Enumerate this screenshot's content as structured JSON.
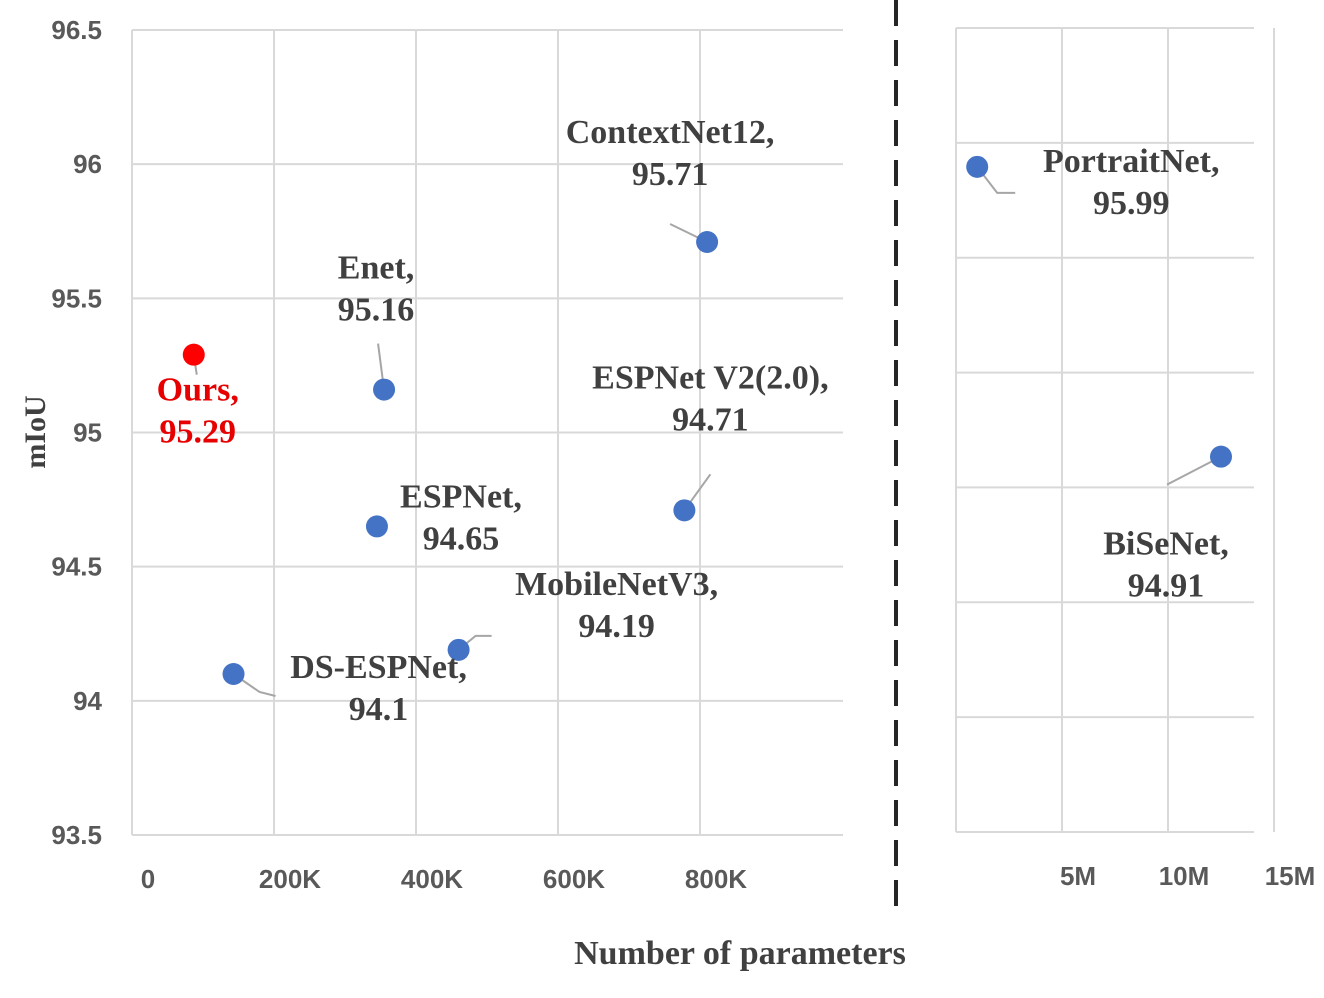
{
  "chart_data": [
    {
      "type": "scatter",
      "title": "",
      "xlabel": "Number of parameters",
      "ylabel": "mIoU",
      "xlim": [
        0,
        1000000
      ],
      "ylim": [
        93.5,
        96.5
      ],
      "grid": true,
      "x_ticks": [
        {
          "value": 0,
          "label": "0"
        },
        {
          "value": 200000,
          "label": "200K"
        },
        {
          "value": 400000,
          "label": "400K"
        },
        {
          "value": 600000,
          "label": "600K"
        },
        {
          "value": 800000,
          "label": "800K"
        }
      ],
      "y_ticks": [
        {
          "value": 93.5,
          "label": "93.5"
        },
        {
          "value": 94,
          "label": "94"
        },
        {
          "value": 94.5,
          "label": "94.5"
        },
        {
          "value": 95,
          "label": "95"
        },
        {
          "value": 95.5,
          "label": "95.5"
        },
        {
          "value": 96,
          "label": "96"
        },
        {
          "value": 96.5,
          "label": "96.5"
        }
      ],
      "points": [
        {
          "name": "Ours,",
          "value": "95.29",
          "x": 87000,
          "y": 95.29,
          "color": "#ff0000",
          "highlight": true
        },
        {
          "name": "DS-ESPNet,",
          "value": "94.1",
          "x": 143000,
          "y": 94.1,
          "color": "#4472c4"
        },
        {
          "name": "ESPNet,",
          "value": "94.65",
          "x": 345000,
          "y": 94.65,
          "color": "#4472c4"
        },
        {
          "name": "Enet,",
          "value": "95.16",
          "x": 355000,
          "y": 95.16,
          "color": "#4472c4"
        },
        {
          "name": "MobileNetV3,",
          "value": "94.19",
          "x": 460000,
          "y": 94.19,
          "color": "#4472c4"
        },
        {
          "name": "ESPNet V2(2.0),",
          "value": "94.71",
          "x": 778000,
          "y": 94.71,
          "color": "#4472c4"
        },
        {
          "name": "ContextNet12,",
          "value": "95.71",
          "x": 810000,
          "y": 95.71,
          "color": "#4472c4"
        }
      ]
    },
    {
      "type": "scatter",
      "title": "",
      "xlim": [
        0,
        15000000
      ],
      "ylim": [
        93.5,
        96.5
      ],
      "grid": true,
      "x_ticks": [
        {
          "value": 5000000,
          "label": "5M"
        },
        {
          "value": 10000000,
          "label": "10M"
        },
        {
          "value": 15000000,
          "label": "15M"
        }
      ],
      "points": [
        {
          "name": "PortraitNet,",
          "value": "95.99",
          "x": 1000000,
          "y": 95.99,
          "color": "#4472c4"
        },
        {
          "name": "BiSeNet,",
          "value": "94.91",
          "x": 12500000,
          "y": 94.91,
          "color": "#4472c4"
        }
      ]
    }
  ]
}
